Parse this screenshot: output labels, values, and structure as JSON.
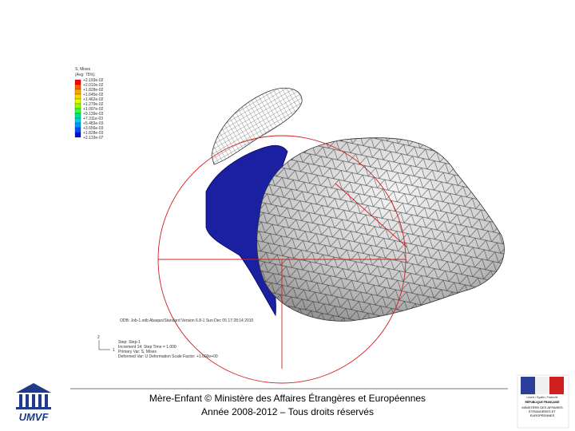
{
  "figure": {
    "legend_title": "S, Mises",
    "legend_subtitle": "(Avg: 75%)",
    "legend_values": [
      "+2.193e-02",
      "+2.010e-02",
      "+1.828e-02",
      "+1.645e-02",
      "+1.462e-02",
      "+1.279e-02",
      "+1.097e-02",
      "+9.139e-03",
      "+7.311e-03",
      "+5.483e-03",
      "+3.656e-03",
      "+1.828e-03",
      "+2.133e-07"
    ],
    "odb_line": "ODB: Job-1.odb    Abaqus/Standard Version 6.8-1    Sun Dec 05 17:28:14 2010",
    "info_lines": [
      "Step: Step-1",
      "Increment    14: Step Time =    1.000",
      "Primary Var: S, Mises",
      "Deformed Var: U   Deformation Scale Factor: +1.000e+00"
    ],
    "axis_labels": [
      "2",
      "1"
    ]
  },
  "footer": {
    "line1": "Mère-Enfant © Ministère des Affaires Étrangères et Européennes",
    "line2": "Année 2008-2012 – Tous droits réservés"
  },
  "logo_left": "UMVF",
  "logo_right": {
    "motto": "Liberté • Égalité • Fraternité",
    "country": "RÉPUBLIQUE FRANÇAISE",
    "ministry": "MINISTÈRE DES AFFAIRES ÉTRANGÈRES ET EUROPÉENNES"
  }
}
